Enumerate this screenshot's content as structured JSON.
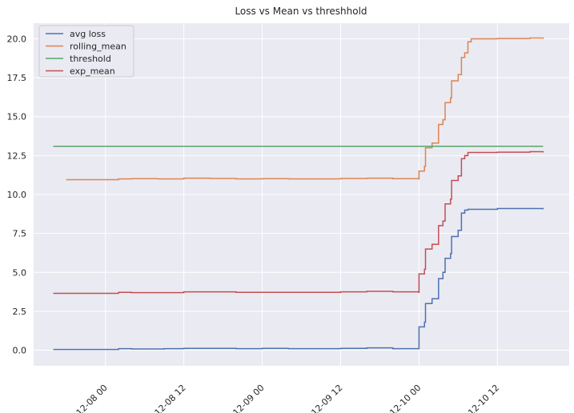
{
  "chart_data": {
    "type": "line",
    "title": "Loss vs Mean vs threshhold",
    "xlabel": "",
    "ylabel": "",
    "xlim": [
      "2023-12-07 13:00",
      "2023-12-10 23:00"
    ],
    "ylim": [
      -1.0,
      21.0
    ],
    "grid": true,
    "legend_position": "upper-left",
    "xticks": [
      {
        "t": "2023-12-08 00:00",
        "label": "12-08 00"
      },
      {
        "t": "2023-12-08 12:00",
        "label": "12-08 12"
      },
      {
        "t": "2023-12-09 00:00",
        "label": "12-09 00"
      },
      {
        "t": "2023-12-09 12:00",
        "label": "12-09 12"
      },
      {
        "t": "2023-12-10 00:00",
        "label": "12-10 00"
      },
      {
        "t": "2023-12-10 12:00",
        "label": "12-10 12"
      }
    ],
    "yticks": [
      {
        "v": 0.0,
        "label": "0.0"
      },
      {
        "v": 2.5,
        "label": "2.5"
      },
      {
        "v": 5.0,
        "label": "5.0"
      },
      {
        "v": 7.5,
        "label": "7.5"
      },
      {
        "v": 10.0,
        "label": "10.0"
      },
      {
        "v": 12.5,
        "label": "12.5"
      },
      {
        "v": 15.0,
        "label": "15.0"
      },
      {
        "v": 17.5,
        "label": "17.5"
      },
      {
        "v": 20.0,
        "label": "20.0"
      }
    ],
    "series": [
      {
        "name": "avg loss",
        "color": "#4c72b0",
        "x": [
          "2023-12-07 16:00",
          "2023-12-08 01:30",
          "2023-12-08 02:00",
          "2023-12-08 04:00",
          "2023-12-08 06:00",
          "2023-12-08 09:00",
          "2023-12-08 12:00",
          "2023-12-08 16:00",
          "2023-12-08 20:00",
          "2023-12-09 00:00",
          "2023-12-09 04:00",
          "2023-12-09 08:00",
          "2023-12-09 12:00",
          "2023-12-09 16:00",
          "2023-12-09 20:00",
          "2023-12-09 23:59",
          "2023-12-10 00:00",
          "2023-12-10 00:50",
          "2023-12-10 01:00",
          "2023-12-10 02:00",
          "2023-12-10 03:00",
          "2023-12-10 03:40",
          "2023-12-10 04:00",
          "2023-12-10 04:50",
          "2023-12-10 05:00",
          "2023-12-10 06:00",
          "2023-12-10 06:30",
          "2023-12-10 07:00",
          "2023-12-10 07:30",
          "2023-12-10 12:00",
          "2023-12-10 17:00",
          "2023-12-10 19:00"
        ],
        "y": [
          0.05,
          0.05,
          0.1,
          0.08,
          0.08,
          0.1,
          0.12,
          0.12,
          0.1,
          0.12,
          0.1,
          0.1,
          0.12,
          0.15,
          0.1,
          0.1,
          1.5,
          1.8,
          3.0,
          3.3,
          4.6,
          5.0,
          5.9,
          6.2,
          7.3,
          7.7,
          8.8,
          9.0,
          9.05,
          9.1,
          9.1,
          9.05
        ]
      },
      {
        "name": "rolling_mean",
        "color": "#dd8452",
        "x": [
          "2023-12-07 18:00",
          "2023-12-08 01:30",
          "2023-12-08 02:00",
          "2023-12-08 04:00",
          "2023-12-08 08:00",
          "2023-12-08 12:00",
          "2023-12-08 16:00",
          "2023-12-08 20:00",
          "2023-12-09 00:00",
          "2023-12-09 04:00",
          "2023-12-09 08:00",
          "2023-12-09 12:00",
          "2023-12-09 16:00",
          "2023-12-09 20:00",
          "2023-12-09 23:59",
          "2023-12-10 00:00",
          "2023-12-10 00:50",
          "2023-12-10 01:00",
          "2023-12-10 02:00",
          "2023-12-10 03:00",
          "2023-12-10 03:40",
          "2023-12-10 04:00",
          "2023-12-10 04:50",
          "2023-12-10 05:00",
          "2023-12-10 06:00",
          "2023-12-10 06:30",
          "2023-12-10 07:00",
          "2023-12-10 07:30",
          "2023-12-10 08:00",
          "2023-12-10 12:00",
          "2023-12-10 17:00",
          "2023-12-10 19:00"
        ],
        "y": [
          10.95,
          10.95,
          11.0,
          11.02,
          11.0,
          11.05,
          11.03,
          11.0,
          11.02,
          11.0,
          11.0,
          11.03,
          11.05,
          11.02,
          11.0,
          11.5,
          11.8,
          13.0,
          13.3,
          14.5,
          14.8,
          15.9,
          16.2,
          17.3,
          17.7,
          18.8,
          19.1,
          19.8,
          20.0,
          20.02,
          20.05,
          20.0
        ]
      },
      {
        "name": "threshold",
        "color": "#55a868",
        "x": [
          "2023-12-07 16:00",
          "2023-12-10 19:00"
        ],
        "y": [
          13.1,
          13.1
        ]
      },
      {
        "name": "exp_mean",
        "color": "#c44e52",
        "x": [
          "2023-12-07 16:00",
          "2023-12-08 01:30",
          "2023-12-08 02:00",
          "2023-12-08 04:00",
          "2023-12-08 08:00",
          "2023-12-08 12:00",
          "2023-12-08 16:00",
          "2023-12-08 20:00",
          "2023-12-09 00:00",
          "2023-12-09 04:00",
          "2023-12-09 08:00",
          "2023-12-09 12:00",
          "2023-12-09 16:00",
          "2023-12-09 20:00",
          "2023-12-09 23:59",
          "2023-12-10 00:00",
          "2023-12-10 00:50",
          "2023-12-10 01:00",
          "2023-12-10 02:00",
          "2023-12-10 03:00",
          "2023-12-10 03:40",
          "2023-12-10 04:00",
          "2023-12-10 04:50",
          "2023-12-10 05:00",
          "2023-12-10 06:00",
          "2023-12-10 06:30",
          "2023-12-10 07:00",
          "2023-12-10 07:30",
          "2023-12-10 12:00",
          "2023-12-10 17:00",
          "2023-12-10 19:00"
        ],
        "y": [
          3.65,
          3.65,
          3.72,
          3.7,
          3.7,
          3.75,
          3.75,
          3.72,
          3.72,
          3.72,
          3.72,
          3.75,
          3.78,
          3.75,
          3.72,
          4.9,
          5.2,
          6.5,
          6.8,
          8.0,
          8.3,
          9.4,
          9.7,
          10.9,
          11.2,
          12.3,
          12.5,
          12.7,
          12.72,
          12.75,
          12.7
        ]
      }
    ]
  }
}
